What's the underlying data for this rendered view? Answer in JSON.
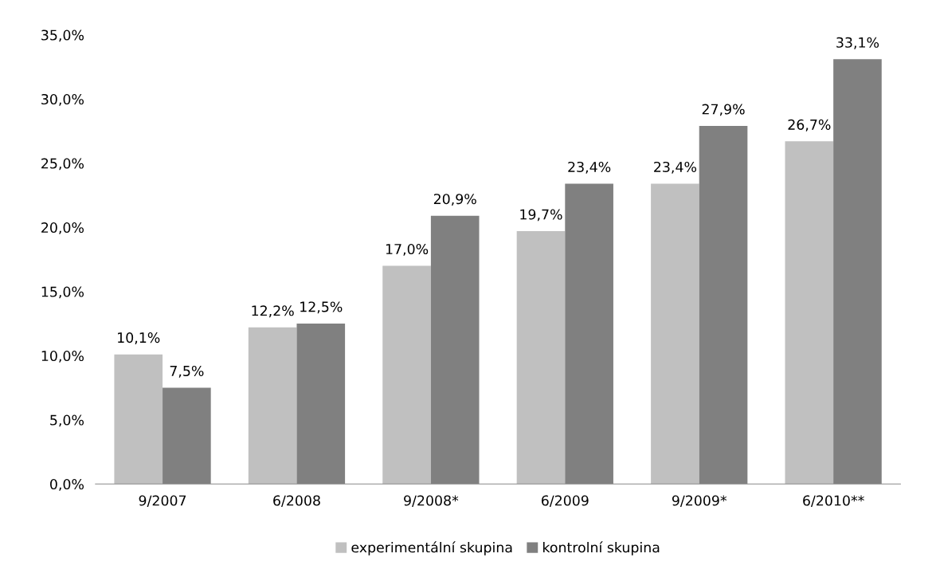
{
  "chart_data": {
    "type": "bar",
    "categories": [
      "9/2007",
      "6/2008",
      "9/2008*",
      "6/2009",
      "9/2009*",
      "6/2010**"
    ],
    "series": [
      {
        "name": "experimentální skupina",
        "color": "#c0c0c0",
        "values": [
          10.1,
          12.2,
          17.0,
          19.7,
          23.4,
          26.7
        ],
        "value_labels": [
          "10,1%",
          "12,2%",
          "17,0%",
          "19,7%",
          "23,4%",
          "26,7%"
        ]
      },
      {
        "name": "kontrolní skupina",
        "color": "#808080",
        "values": [
          7.5,
          12.5,
          20.9,
          23.4,
          27.9,
          33.1
        ],
        "value_labels": [
          "7,5%",
          "12,5%",
          "20,9%",
          "23,4%",
          "27,9%",
          "33,1%"
        ]
      }
    ],
    "ylim": [
      0,
      35
    ],
    "yticks": [
      {
        "value": 0,
        "label": "0,0%"
      },
      {
        "value": 5,
        "label": "5,0%"
      },
      {
        "value": 10,
        "label": "10,0%"
      },
      {
        "value": 15,
        "label": "15,0%"
      },
      {
        "value": 20,
        "label": "20,0%"
      },
      {
        "value": 25,
        "label": "25,0%"
      },
      {
        "value": 30,
        "label": "30,0%"
      },
      {
        "value": 35,
        "label": "35,0%"
      }
    ],
    "grid": false,
    "legend": "bottom"
  }
}
